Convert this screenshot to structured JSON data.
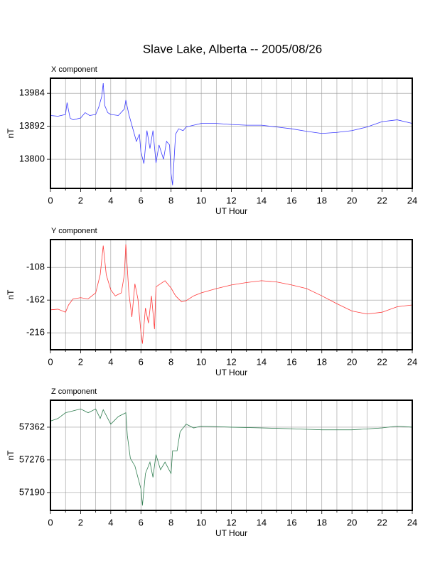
{
  "title": "Slave Lake, Alberta -- 2005/08/26",
  "chart_data": [
    {
      "type": "line",
      "title": "X component",
      "xlabel": "UT Hour",
      "ylabel": "nT",
      "color": "#3a3aff",
      "x": [
        0,
        0.5,
        1,
        1.1,
        1.3,
        1.5,
        2,
        2.3,
        2.6,
        3,
        3.2,
        3.4,
        3.5,
        3.6,
        3.8,
        4,
        4.5,
        4.9,
        5,
        5.2,
        5.5,
        5.7,
        5.9,
        6,
        6.2,
        6.4,
        6.6,
        6.8,
        7,
        7.2,
        7.5,
        7.7,
        7.9,
        8,
        8.1,
        8.3,
        8.5,
        8.8,
        9,
        9.5,
        10,
        11,
        12,
        13,
        14,
        15,
        16,
        17,
        18,
        19,
        20,
        21,
        22,
        23,
        24
      ],
      "values": [
        13922,
        13920,
        13925,
        13958,
        13915,
        13910,
        13915,
        13930,
        13922,
        13925,
        13945,
        13975,
        14012,
        13950,
        13930,
        13925,
        13922,
        13940,
        13965,
        13925,
        13880,
        13850,
        13870,
        13820,
        13788,
        13880,
        13830,
        13880,
        13790,
        13840,
        13800,
        13850,
        13840,
        13760,
        13728,
        13870,
        13885,
        13880,
        13890,
        13895,
        13900,
        13900,
        13897,
        13895,
        13895,
        13890,
        13885,
        13878,
        13872,
        13875,
        13880,
        13890,
        13905,
        13910,
        13900
      ],
      "xlim": [
        0,
        24
      ],
      "xticks": [
        0,
        2,
        4,
        6,
        8,
        10,
        12,
        14,
        16,
        18,
        20,
        22,
        24
      ],
      "xminorticks": [
        1,
        3,
        5,
        7,
        9,
        11,
        13,
        15,
        17,
        19,
        21,
        23
      ],
      "ylim": [
        13719,
        14026
      ],
      "yticks": [
        13800,
        13892,
        13984
      ],
      "grid": true
    },
    {
      "type": "line",
      "title": "Y component",
      "xlabel": "UT Hour",
      "ylabel": "nT",
      "color": "#ff3a3a",
      "x": [
        0,
        0.5,
        1,
        1.2,
        1.5,
        2,
        2.5,
        3,
        3.3,
        3.5,
        3.7,
        4,
        4.3,
        4.7,
        4.9,
        5,
        5.2,
        5.4,
        5.6,
        5.8,
        6,
        6.1,
        6.3,
        6.5,
        6.7,
        6.9,
        7,
        7.3,
        7.6,
        8,
        8.3,
        8.7,
        9,
        9.5,
        10,
        11,
        12,
        13,
        14,
        15,
        16,
        17,
        18,
        19,
        20,
        21,
        22,
        23,
        24
      ],
      "values": [
        -178,
        -177,
        -182,
        -170,
        -160,
        -158,
        -160,
        -150,
        -120,
        -72,
        -120,
        -145,
        -155,
        -150,
        -120,
        -70,
        -150,
        -190,
        -135,
        -160,
        -215,
        -234,
        -175,
        -200,
        -155,
        -210,
        -140,
        -135,
        -130,
        -142,
        -155,
        -165,
        -163,
        -155,
        -150,
        -143,
        -137,
        -133,
        -130,
        -132,
        -137,
        -143,
        -155,
        -168,
        -180,
        -185,
        -182,
        -173,
        -170
      ],
      "xlim": [
        0,
        24
      ],
      "xticks": [
        0,
        2,
        4,
        6,
        8,
        10,
        12,
        14,
        16,
        18,
        20,
        22,
        24
      ],
      "xminorticks": [
        1,
        3,
        5,
        7,
        9,
        11,
        13,
        15,
        17,
        19,
        21,
        23
      ],
      "ylim": [
        -244,
        -62
      ],
      "yticks": [
        -216,
        -162,
        -108
      ],
      "grid": true
    },
    {
      "type": "line",
      "title": "Z component",
      "xlabel": "UT Hour",
      "ylabel": "nT",
      "color": "#2e7d4f",
      "x": [
        0,
        0.5,
        1,
        1.5,
        2,
        2.5,
        3,
        3.3,
        3.5,
        4,
        4.5,
        5,
        5.1,
        5.3,
        5.6,
        6,
        6.1,
        6.3,
        6.6,
        6.8,
        7,
        7.3,
        7.6,
        8,
        8.1,
        8.4,
        8.6,
        9,
        9.5,
        10,
        12,
        14,
        16,
        18,
        20,
        22,
        23,
        24
      ],
      "values": [
        57378,
        57385,
        57400,
        57405,
        57410,
        57400,
        57410,
        57385,
        57408,
        57370,
        57390,
        57400,
        57340,
        57280,
        57260,
        57200,
        57156,
        57240,
        57270,
        57230,
        57290,
        57250,
        57270,
        57240,
        57300,
        57300,
        57350,
        57370,
        57360,
        57365,
        57362,
        57360,
        57358,
        57355,
        57355,
        57360,
        57365,
        57362
      ],
      "xlim": [
        0,
        24
      ],
      "xticks": [
        0,
        2,
        4,
        6,
        8,
        10,
        12,
        14,
        16,
        18,
        20,
        22,
        24
      ],
      "xminorticks": [
        1,
        3,
        5,
        7,
        9,
        11,
        13,
        15,
        17,
        19,
        21,
        23
      ],
      "ylim": [
        57143,
        57433
      ],
      "yticks": [
        57190,
        57276,
        57362
      ],
      "grid": true
    }
  ]
}
